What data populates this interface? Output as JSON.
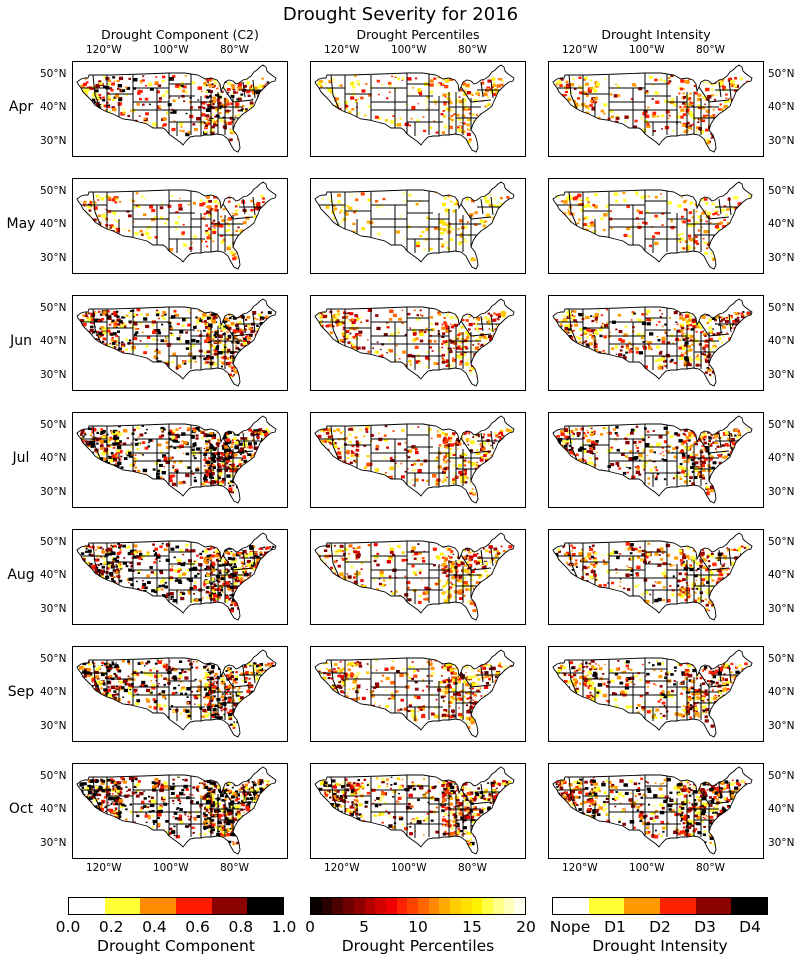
{
  "title": "Drought Severity for 2016",
  "columns": [
    {
      "title": "Drought Component (C2)"
    },
    {
      "title": "Drought Percentiles"
    },
    {
      "title": "Drought Intensity"
    }
  ],
  "months": [
    "Apr",
    "May",
    "Jun",
    "Jul",
    "Aug",
    "Sep",
    "Oct"
  ],
  "lon_ticks": [
    "120°W",
    "100°W",
    "80°W"
  ],
  "lat_ticks": [
    "50°N",
    "40°N",
    "30°N"
  ],
  "colors": {
    "component": [
      "#ffffff",
      "#ffff33",
      "#ff8c00",
      "#ff1a00",
      "#8b0000",
      "#000000"
    ],
    "percentiles": [
      "#0a0000",
      "#2a0000",
      "#4c0000",
      "#6e0000",
      "#900000",
      "#b20000",
      "#d40000",
      "#f00000",
      "#ff2200",
      "#ff4400",
      "#ff6600",
      "#ff8800",
      "#ffaa00",
      "#ffcc00",
      "#ffe000",
      "#fff200",
      "#ffff44",
      "#ffff88",
      "#ffffbb",
      "#ffffee"
    ],
    "intensity": [
      "#ffffff",
      "#ffff33",
      "#ff9900",
      "#ff2200",
      "#8b0000",
      "#000000"
    ]
  },
  "chart_data": [
    {
      "type": "heatmap",
      "title": "Drought Component (C2)",
      "colorbar_label": "Drought Component",
      "colorbar_ticks": [
        "0.0",
        "0.2",
        "0.4",
        "0.6",
        "0.8",
        "1.0"
      ],
      "range": [
        0,
        1
      ],
      "severity_by_month": {
        "Apr": 0.5,
        "May": 0.25,
        "Jun": 0.75,
        "Jul": 0.85,
        "Aug": 0.85,
        "Sep": 0.8,
        "Oct": 0.95
      }
    },
    {
      "type": "heatmap",
      "title": "Drought Percentiles",
      "colorbar_label": "Drought Percentiles",
      "colorbar_ticks": [
        "0",
        "5",
        "10",
        "15",
        "20"
      ],
      "range": [
        0,
        20
      ],
      "severity_by_month": {
        "Apr": 0.25,
        "May": 0.1,
        "Jun": 0.45,
        "Jul": 0.45,
        "Aug": 0.45,
        "Sep": 0.5,
        "Oct": 0.7
      }
    },
    {
      "type": "heatmap",
      "title": "Drought Intensity",
      "colorbar_label": "Drought Intensity",
      "colorbar_ticks": [
        "Nope",
        "D1",
        "D2",
        "D3",
        "D4"
      ],
      "severity_by_month": {
        "Apr": 0.3,
        "May": 0.2,
        "Jun": 0.5,
        "Jul": 0.55,
        "Aug": 0.5,
        "Sep": 0.55,
        "Oct": 0.7
      }
    }
  ]
}
